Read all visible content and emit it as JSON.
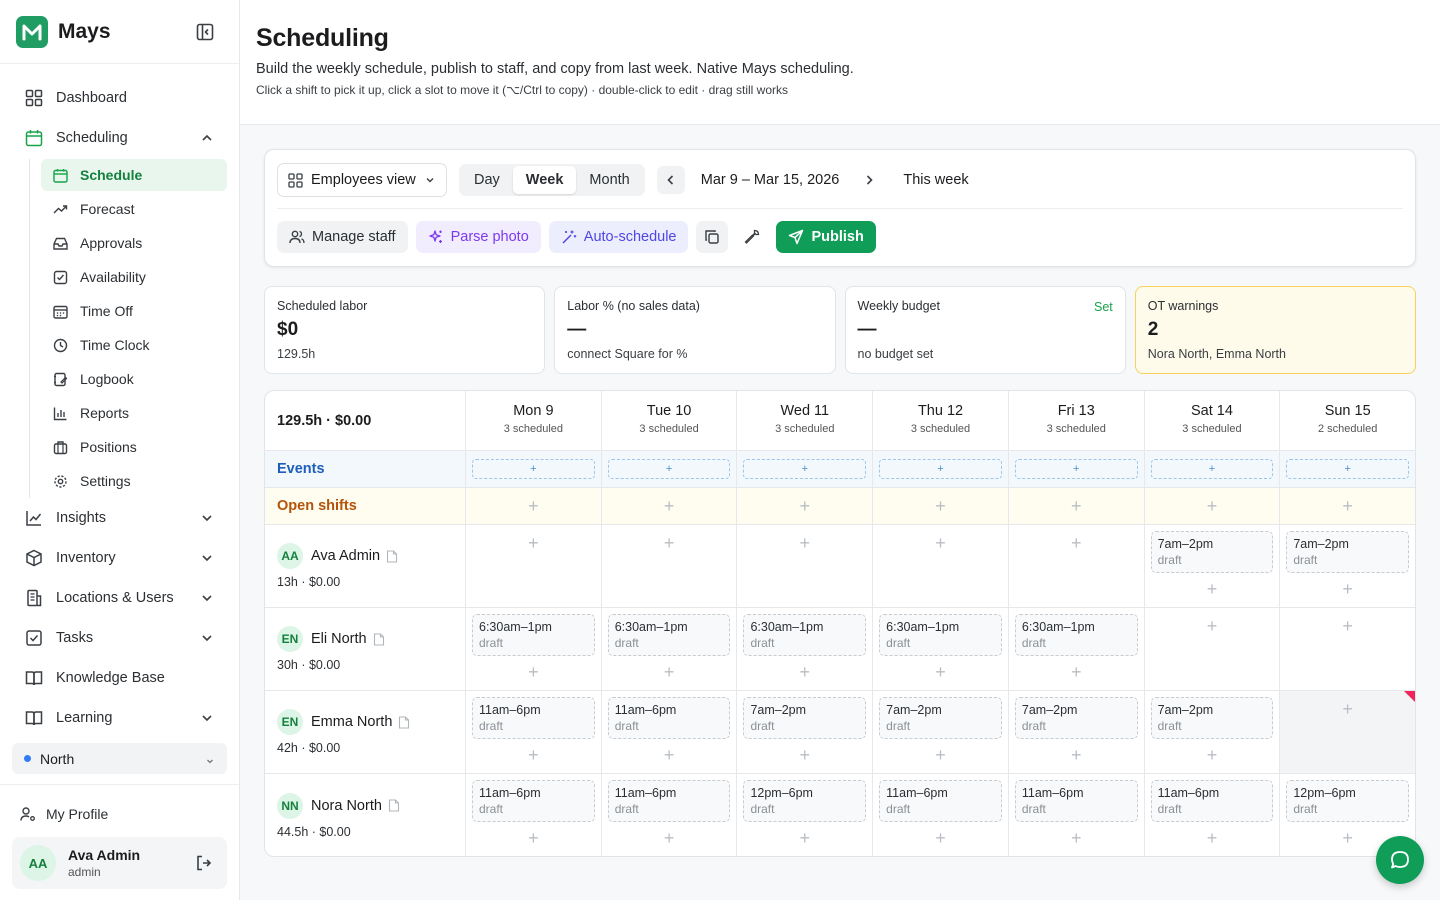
{
  "brand": {
    "name": "Mays",
    "accent": "#1f9d62"
  },
  "nav": {
    "dashboard": "Dashboard",
    "scheduling": "Scheduling",
    "sub": {
      "schedule": "Schedule",
      "forecast": "Forecast",
      "approvals": "Approvals",
      "availability": "Availability",
      "time_off": "Time Off",
      "time_clock": "Time Clock",
      "logbook": "Logbook",
      "reports": "Reports",
      "positions": "Positions",
      "settings": "Settings"
    },
    "insights": "Insights",
    "inventory": "Inventory",
    "locations_users": "Locations & Users",
    "tasks": "Tasks",
    "knowledge_base": "Knowledge Base",
    "learning": "Learning"
  },
  "location": {
    "name": "North"
  },
  "profile": {
    "link": "My Profile",
    "initials": "AA",
    "name": "Ava Admin",
    "role": "admin"
  },
  "header": {
    "title": "Scheduling",
    "subtitle": "Build the weekly schedule, publish to staff, and copy from last week. Native Mays scheduling.",
    "hint": "Click a shift to pick it up, click a slot to move it (⌥/Ctrl to copy) · double-click to edit · drag still works"
  },
  "toolbar": {
    "view_select": "Employees view",
    "segments": {
      "day": "Day",
      "week": "Week",
      "month": "Month"
    },
    "selected_segment": "Week",
    "date_range": "Mar 9 – Mar 15, 2026",
    "this_week": "This week",
    "manage_staff": "Manage staff",
    "parse_photo": "Parse photo",
    "auto_schedule": "Auto-schedule",
    "publish": "Publish"
  },
  "cards": {
    "labor": {
      "label": "Scheduled labor",
      "value": "$0",
      "sub": "129.5h"
    },
    "labor_pct": {
      "label": "Labor % (no sales data)",
      "value": "—",
      "sub": "connect Square for %"
    },
    "budget": {
      "label": "Weekly budget",
      "link": "Set",
      "value": "—",
      "sub": "no budget set"
    },
    "ot": {
      "label": "OT warnings",
      "value": "2",
      "sub": "Nora North, Emma North"
    }
  },
  "schedule": {
    "total": "129.5h · $0.00",
    "days": [
      {
        "name": "Mon 9",
        "count": "3 scheduled"
      },
      {
        "name": "Tue 10",
        "count": "3 scheduled"
      },
      {
        "name": "Wed 11",
        "count": "3 scheduled"
      },
      {
        "name": "Thu 12",
        "count": "3 scheduled"
      },
      {
        "name": "Fri 13",
        "count": "3 scheduled"
      },
      {
        "name": "Sat 14",
        "count": "3 scheduled"
      },
      {
        "name": "Sun 15",
        "count": "2 scheduled"
      }
    ],
    "events_label": "Events",
    "open_shifts_label": "Open shifts",
    "add_glyph": "+",
    "employees": [
      {
        "initials": "AA",
        "name": "Ava Admin",
        "hours": "13h · $0.00",
        "shifts": [
          null,
          null,
          null,
          null,
          null,
          {
            "time": "7am–2pm",
            "status": "draft"
          },
          {
            "time": "7am–2pm",
            "status": "draft"
          }
        ]
      },
      {
        "initials": "EN",
        "name": "Eli North",
        "hours": "30h · $0.00",
        "shifts": [
          {
            "time": "6:30am–1pm",
            "status": "draft"
          },
          {
            "time": "6:30am–1pm",
            "status": "draft"
          },
          {
            "time": "6:30am–1pm",
            "status": "draft"
          },
          {
            "time": "6:30am–1pm",
            "status": "draft"
          },
          {
            "time": "6:30am–1pm",
            "status": "draft"
          },
          null,
          null
        ]
      },
      {
        "initials": "EN",
        "name": "Emma North",
        "hours": "42h · $0.00",
        "shifts": [
          {
            "time": "11am–6pm",
            "status": "draft"
          },
          {
            "time": "11am–6pm",
            "status": "draft"
          },
          {
            "time": "7am–2pm",
            "status": "draft"
          },
          {
            "time": "7am–2pm",
            "status": "draft"
          },
          {
            "time": "7am–2pm",
            "status": "draft"
          },
          {
            "time": "7am–2pm",
            "status": "draft"
          },
          null
        ],
        "ot_day": 6
      },
      {
        "initials": "NN",
        "name": "Nora North",
        "hours": "44.5h · $0.00",
        "shifts": [
          {
            "time": "11am–6pm",
            "status": "draft"
          },
          {
            "time": "11am–6pm",
            "status": "draft"
          },
          {
            "time": "12pm–6pm",
            "status": "draft"
          },
          {
            "time": "11am–6pm",
            "status": "draft"
          },
          {
            "time": "11am–6pm",
            "status": "draft"
          },
          {
            "time": "11am–6pm",
            "status": "draft"
          },
          {
            "time": "12pm–6pm",
            "status": "draft"
          }
        ]
      }
    ]
  }
}
